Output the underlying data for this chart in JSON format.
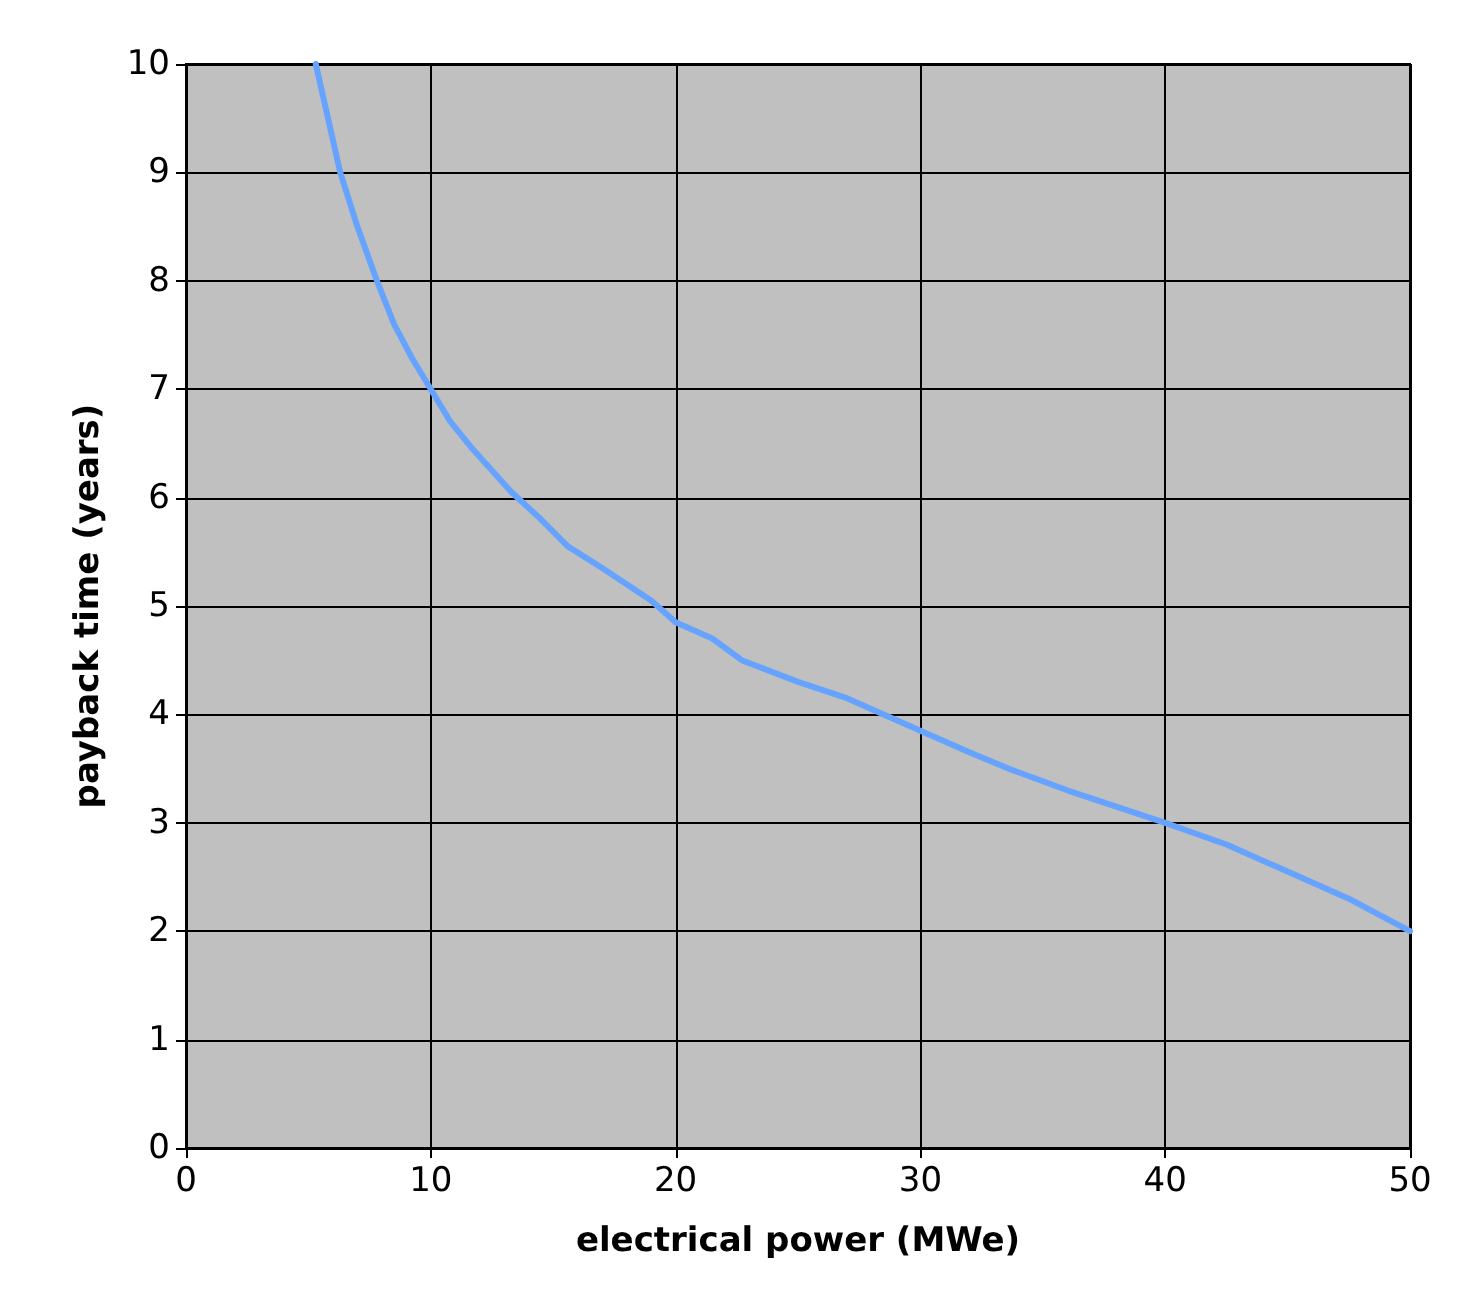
{
  "chart_data": {
    "type": "line",
    "xlabel": "electrical power (MWe)",
    "ylabel": "payback time (years)",
    "x": [
      5.3,
      5.8,
      6.3,
      7.0,
      7.8,
      8.5,
      9.2,
      10,
      10.8,
      11.7,
      12.5,
      13.3,
      14.5,
      15.6,
      17,
      18,
      19,
      20,
      21.5,
      22.7,
      25,
      27,
      28.5,
      30,
      32,
      33.6,
      36,
      38,
      40,
      42.5,
      45,
      47.5,
      50
    ],
    "series": [
      {
        "color": "#66a3ff",
        "values": [
          10,
          9.5,
          9,
          8.5,
          8,
          7.6,
          7.3,
          7,
          6.7,
          6.45,
          6.25,
          6.05,
          5.8,
          5.55,
          5.35,
          5.2,
          5.05,
          4.85,
          4.7,
          4.5,
          4.3,
          4.15,
          4.0,
          3.85,
          3.65,
          3.5,
          3.3,
          3.15,
          3.0,
          2.8,
          2.55,
          2.3,
          2.0
        ]
      }
    ],
    "xlim": [
      0,
      50
    ],
    "xticks": [
      0,
      10,
      20,
      30,
      40,
      50
    ],
    "ylim": [
      0,
      10
    ],
    "yticks": [
      0,
      1,
      2,
      3,
      4,
      5,
      6,
      7,
      8,
      9,
      10
    ],
    "grid": true,
    "marker": "none",
    "line_style": "solid"
  }
}
